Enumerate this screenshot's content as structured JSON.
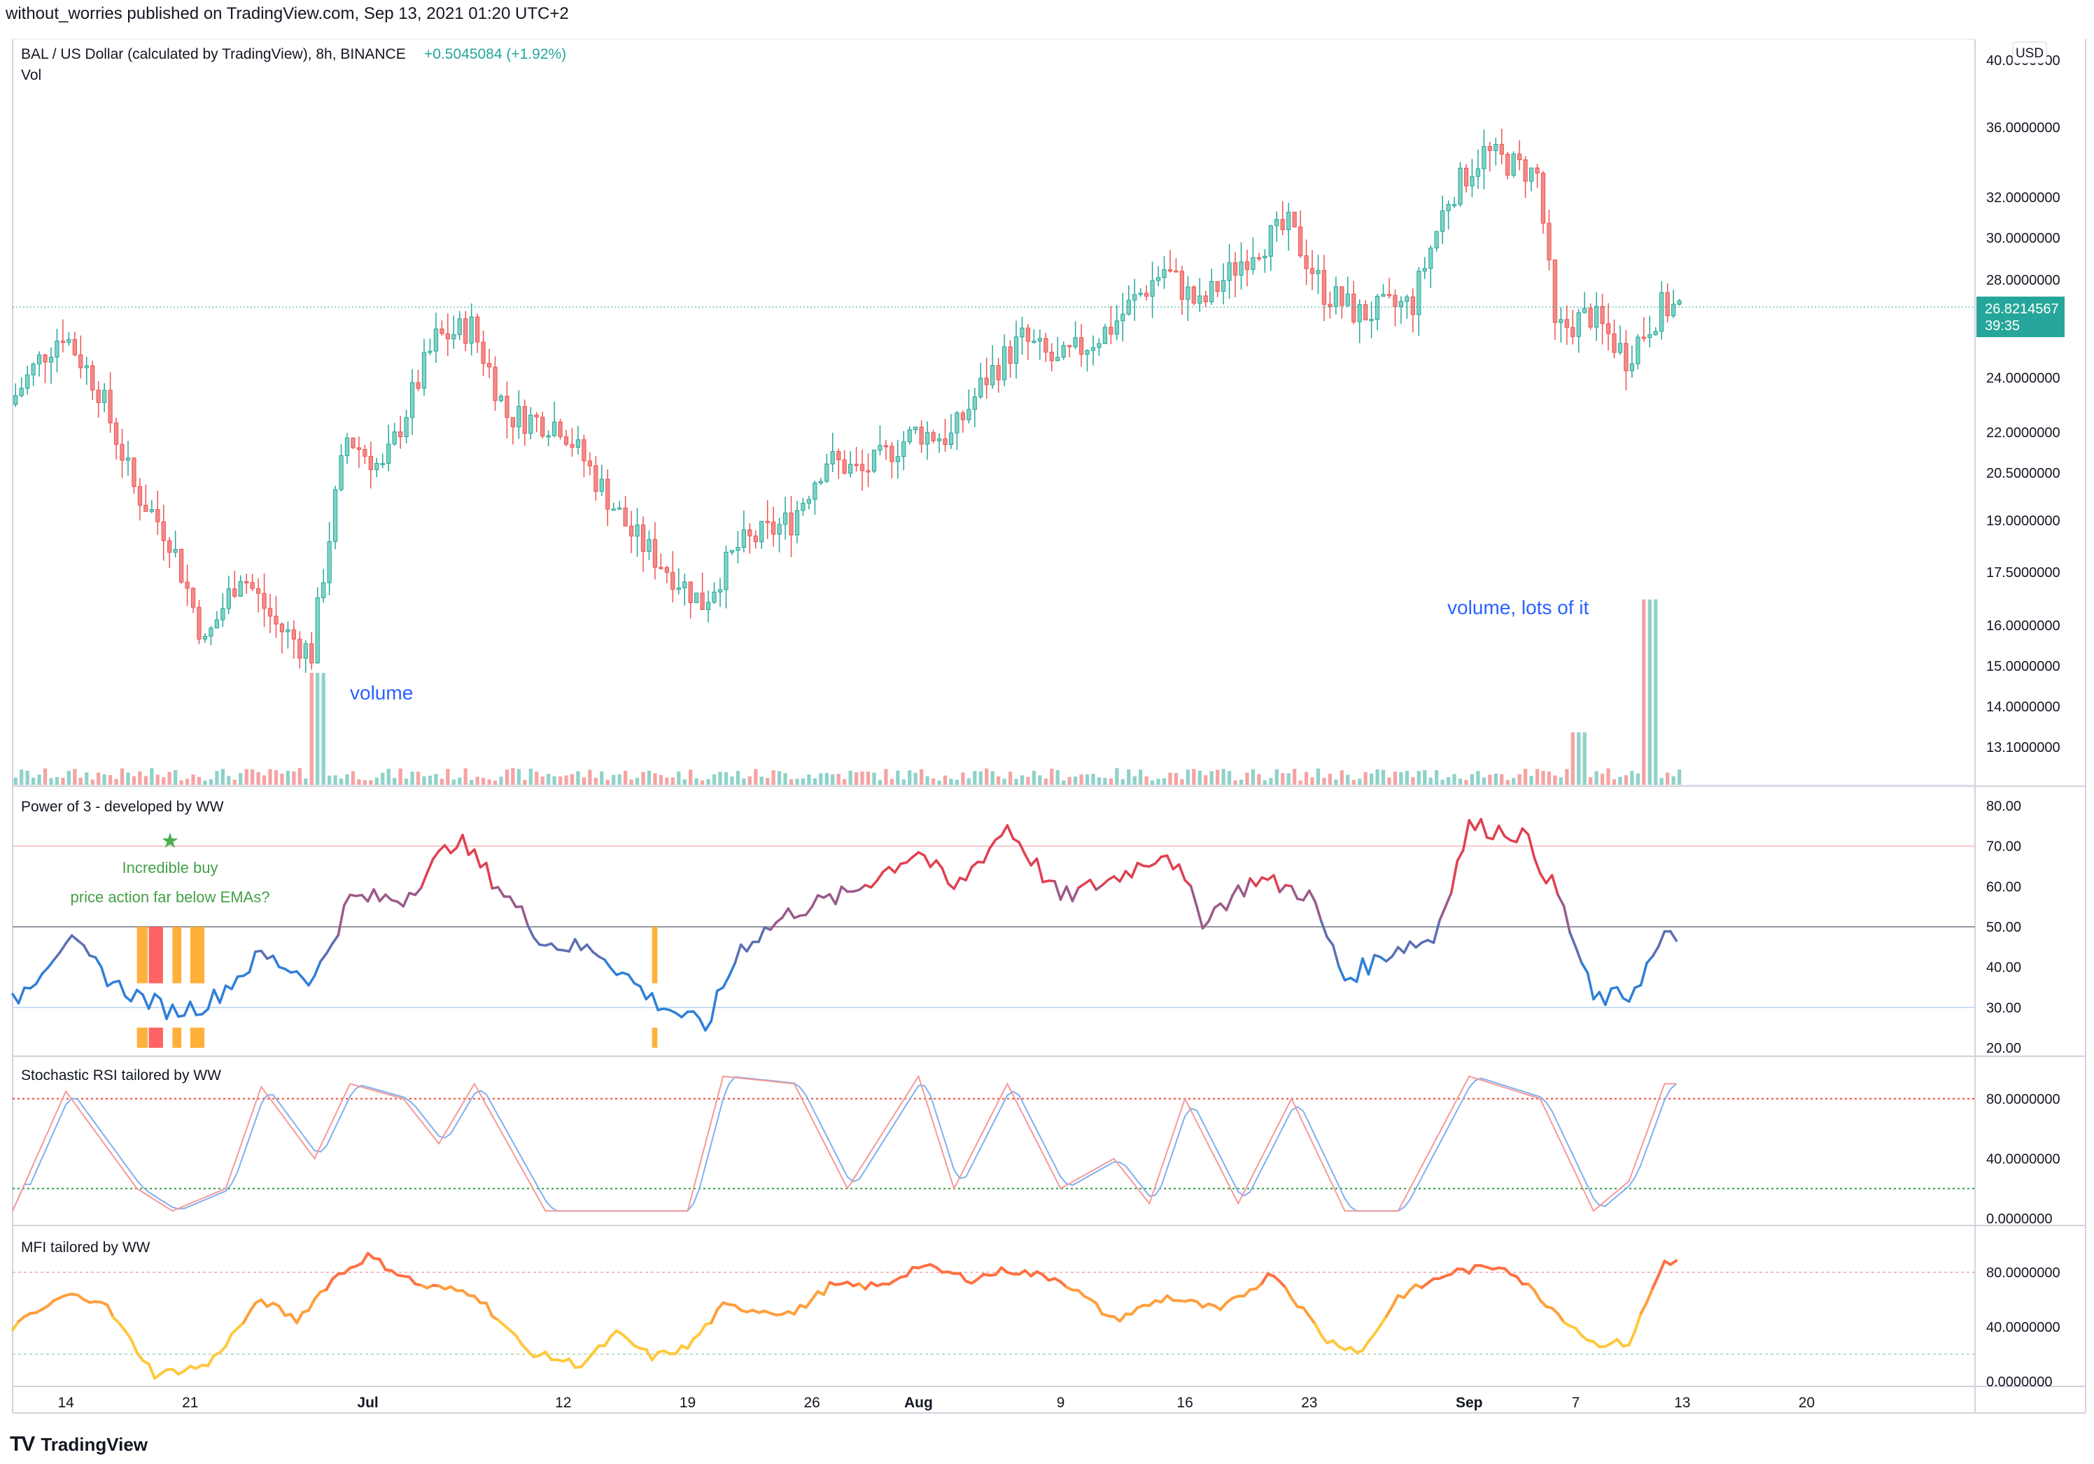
{
  "header": {
    "published": "without_worries published on TradingView.com, Sep 13, 2021 01:20 UTC+2"
  },
  "footer": {
    "brand": "TradingView",
    "logo": "tradingview-logo"
  },
  "colors": {
    "up": "#26a69a",
    "down": "#ef5350",
    "upBody": "#7fd3c4",
    "downBody": "#f28b8b",
    "volUp": "#8ed2c8",
    "volDown": "#f5a3a3",
    "blue": "#2962ff",
    "grid": "#e0e3eb",
    "text": "#131722",
    "axisText": "#131722",
    "powerHi": "#e04050",
    "powerLo": "#2f7fd8",
    "orange": "#ffa726",
    "red": "#ff5252",
    "green": "#00c853",
    "mfiOrange": "#ff7043",
    "mfiYellow": "#ffc83d"
  },
  "price_panel": {
    "symbol": "BAL / US Dollar (calculated by TradingView), 8h, BINANCE",
    "change": "+0.5045084 (+1.92%)",
    "vol_label": "Vol",
    "currency": "USD",
    "last_price": "26.8214567",
    "countdown": "39:35",
    "annotation_volume": "volume",
    "annotation_volume_lots": "volume, lots of it",
    "axis_labels": [
      "40.0000000",
      "36.0000000",
      "32.0000000",
      "30.0000000",
      "28.0000000",
      "24.0000000",
      "22.0000000",
      "20.5000000",
      "19.0000000",
      "17.5000000",
      "16.0000000",
      "15.0000000",
      "14.0000000",
      "13.1000000"
    ]
  },
  "power_panel": {
    "title": "Power of 3 - developed by WW",
    "note_line1": "Incredible buy",
    "note_line2": "price action far below EMAs?",
    "axis_labels": [
      "80.00",
      "70.00",
      "60.00",
      "50.00",
      "40.00",
      "30.00",
      "20.00"
    ]
  },
  "stoch_panel": {
    "title": "Stochastic RSI tailored by WW",
    "axis_labels": [
      "80.0000000",
      "40.0000000",
      "0.0000000"
    ]
  },
  "mfi_panel": {
    "title": "MFI tailored by WW",
    "axis_labels": [
      "80.0000000",
      "40.0000000",
      "0.0000000"
    ]
  },
  "time_axis": [
    "14",
    "21",
    "Jul",
    "12",
    "19",
    "26",
    "Aug",
    "9",
    "16",
    "23",
    "Sep",
    "7",
    "13",
    "20"
  ],
  "chart_data": {
    "type": "candlestick",
    "timeframe": "8h",
    "xlim": [
      "2021-06-11",
      "2021-09-13"
    ],
    "price_ylim": [
      12.5,
      40.5
    ],
    "price_scale": "log",
    "close_path": [
      {
        "date": "2021-06-11",
        "close": 23.0
      },
      {
        "date": "2021-06-13",
        "close": 25.0
      },
      {
        "date": "2021-06-14",
        "close": 25.8
      },
      {
        "date": "2021-06-16",
        "close": 23.6
      },
      {
        "date": "2021-06-18",
        "close": 20.0
      },
      {
        "date": "2021-06-20",
        "close": 18.5
      },
      {
        "date": "2021-06-22",
        "close": 15.5
      },
      {
        "date": "2021-06-24",
        "close": 17.5
      },
      {
        "date": "2021-06-26",
        "close": 16.0
      },
      {
        "date": "2021-06-28",
        "close": 15.3
      },
      {
        "date": "2021-06-30",
        "close": 21.8
      },
      {
        "date": "2021-07-02",
        "close": 20.6
      },
      {
        "date": "2021-07-05",
        "close": 25.5
      },
      {
        "date": "2021-07-07",
        "close": 26.0
      },
      {
        "date": "2021-07-09",
        "close": 22.6
      },
      {
        "date": "2021-07-12",
        "close": 22.3
      },
      {
        "date": "2021-07-14",
        "close": 20.3
      },
      {
        "date": "2021-07-16",
        "close": 18.6
      },
      {
        "date": "2021-07-18",
        "close": 17.6
      },
      {
        "date": "2021-07-20",
        "close": 16.6
      },
      {
        "date": "2021-07-22",
        "close": 18.2
      },
      {
        "date": "2021-07-25",
        "close": 19.0
      },
      {
        "date": "2021-07-27",
        "close": 21.0
      },
      {
        "date": "2021-07-29",
        "close": 20.5
      },
      {
        "date": "2021-08-01",
        "close": 22.0
      },
      {
        "date": "2021-08-03",
        "close": 21.8
      },
      {
        "date": "2021-08-05",
        "close": 24.0
      },
      {
        "date": "2021-08-07",
        "close": 25.5
      },
      {
        "date": "2021-08-09",
        "close": 24.5
      },
      {
        "date": "2021-08-12",
        "close": 26.0
      },
      {
        "date": "2021-08-15",
        "close": 28.5
      },
      {
        "date": "2021-08-17",
        "close": 26.8
      },
      {
        "date": "2021-08-20",
        "close": 29.5
      },
      {
        "date": "2021-08-22",
        "close": 30.5
      },
      {
        "date": "2021-08-24",
        "close": 27.5
      },
      {
        "date": "2021-08-26",
        "close": 26.5
      },
      {
        "date": "2021-08-29",
        "close": 27.0
      },
      {
        "date": "2021-08-31",
        "close": 32.0
      },
      {
        "date": "2021-09-02",
        "close": 34.5
      },
      {
        "date": "2021-09-05",
        "close": 33.2
      },
      {
        "date": "2021-09-06",
        "close": 25.8
      },
      {
        "date": "2021-09-08",
        "close": 26.5
      },
      {
        "date": "2021-09-10",
        "close": 24.8
      },
      {
        "date": "2021-09-12",
        "close": 26.8
      }
    ],
    "volume_spikes": [
      {
        "date": "2021-06-28",
        "relative": "large"
      },
      {
        "date": "2021-09-07",
        "relative": "medium"
      },
      {
        "date": "2021-09-11",
        "relative": "very large"
      }
    ],
    "power_of_3": {
      "ylim": [
        20,
        80
      ],
      "reference_lines": [
        70,
        50,
        30
      ],
      "path": [
        {
          "date": "2021-06-11",
          "value": 31
        },
        {
          "date": "2021-06-14",
          "value": 47
        },
        {
          "date": "2021-06-17",
          "value": 35
        },
        {
          "date": "2021-06-20",
          "value": 29
        },
        {
          "date": "2021-06-22",
          "value": 31
        },
        {
          "date": "2021-06-25",
          "value": 43
        },
        {
          "date": "2021-06-28",
          "value": 37
        },
        {
          "date": "2021-06-30",
          "value": 57
        },
        {
          "date": "2021-07-03",
          "value": 57
        },
        {
          "date": "2021-07-06",
          "value": 72
        },
        {
          "date": "2021-07-08",
          "value": 62
        },
        {
          "date": "2021-07-11",
          "value": 46
        },
        {
          "date": "2021-07-14",
          "value": 44
        },
        {
          "date": "2021-07-17",
          "value": 32
        },
        {
          "date": "2021-07-20",
          "value": 25
        },
        {
          "date": "2021-07-22",
          "value": 45
        },
        {
          "date": "2021-07-25",
          "value": 54
        },
        {
          "date": "2021-07-28",
          "value": 58
        },
        {
          "date": "2021-08-01",
          "value": 69
        },
        {
          "date": "2021-08-03",
          "value": 59
        },
        {
          "date": "2021-08-06",
          "value": 75
        },
        {
          "date": "2021-08-09",
          "value": 57
        },
        {
          "date": "2021-08-12",
          "value": 62
        },
        {
          "date": "2021-08-15",
          "value": 69
        },
        {
          "date": "2021-08-17",
          "value": 52
        },
        {
          "date": "2021-08-20",
          "value": 62
        },
        {
          "date": "2021-08-23",
          "value": 58
        },
        {
          "date": "2021-08-25",
          "value": 37
        },
        {
          "date": "2021-08-28",
          "value": 45
        },
        {
          "date": "2021-08-30",
          "value": 47
        },
        {
          "date": "2021-09-01",
          "value": 75
        },
        {
          "date": "2021-09-04",
          "value": 73
        },
        {
          "date": "2021-09-06",
          "value": 58
        },
        {
          "date": "2021-09-08",
          "value": 32
        },
        {
          "date": "2021-09-10",
          "value": 33
        },
        {
          "date": "2021-09-12",
          "value": 47
        }
      ]
    },
    "stoch_rsi": {
      "ylim": [
        0,
        100
      ],
      "reference_lines": [
        80,
        20
      ],
      "k_path": [
        {
          "date": "2021-06-11",
          "value": 5
        },
        {
          "date": "2021-06-14",
          "value": 85
        },
        {
          "date": "2021-06-18",
          "value": 20
        },
        {
          "date": "2021-06-20",
          "value": 5
        },
        {
          "date": "2021-06-23",
          "value": 20
        },
        {
          "date": "2021-06-25",
          "value": 88
        },
        {
          "date": "2021-06-28",
          "value": 40
        },
        {
          "date": "2021-06-30",
          "value": 90
        },
        {
          "date": "2021-07-03",
          "value": 80
        },
        {
          "date": "2021-07-05",
          "value": 50
        },
        {
          "date": "2021-07-07",
          "value": 90
        },
        {
          "date": "2021-07-11",
          "value": 5
        },
        {
          "date": "2021-07-15",
          "value": 5
        },
        {
          "date": "2021-07-17",
          "value": 5
        },
        {
          "date": "2021-07-19",
          "value": 5
        },
        {
          "date": "2021-07-21",
          "value": 95
        },
        {
          "date": "2021-07-25",
          "value": 90
        },
        {
          "date": "2021-07-28",
          "value": 20
        },
        {
          "date": "2021-08-01",
          "value": 95
        },
        {
          "date": "2021-08-03",
          "value": 20
        },
        {
          "date": "2021-08-06",
          "value": 90
        },
        {
          "date": "2021-08-09",
          "value": 20
        },
        {
          "date": "2021-08-12",
          "value": 40
        },
        {
          "date": "2021-08-14",
          "value": 10
        },
        {
          "date": "2021-08-16",
          "value": 80
        },
        {
          "date": "2021-08-19",
          "value": 10
        },
        {
          "date": "2021-08-22",
          "value": 80
        },
        {
          "date": "2021-08-25",
          "value": 5
        },
        {
          "date": "2021-08-28",
          "value": 5
        },
        {
          "date": "2021-09-01",
          "value": 95
        },
        {
          "date": "2021-09-05",
          "value": 80
        },
        {
          "date": "2021-09-08",
          "value": 5
        },
        {
          "date": "2021-09-10",
          "value": 25
        },
        {
          "date": "2021-09-12",
          "value": 90
        }
      ]
    },
    "mfi": {
      "ylim": [
        0,
        100
      ],
      "reference_lines": [
        80,
        20
      ],
      "path": [
        {
          "date": "2021-06-11",
          "value": 40
        },
        {
          "date": "2021-06-14",
          "value": 63
        },
        {
          "date": "2021-06-16",
          "value": 60
        },
        {
          "date": "2021-06-19",
          "value": 5
        },
        {
          "date": "2021-06-22",
          "value": 12
        },
        {
          "date": "2021-06-25",
          "value": 60
        },
        {
          "date": "2021-06-27",
          "value": 45
        },
        {
          "date": "2021-06-29",
          "value": 75
        },
        {
          "date": "2021-07-01",
          "value": 92
        },
        {
          "date": "2021-07-04",
          "value": 70
        },
        {
          "date": "2021-07-07",
          "value": 65
        },
        {
          "date": "2021-07-10",
          "value": 22
        },
        {
          "date": "2021-07-13",
          "value": 12
        },
        {
          "date": "2021-07-15",
          "value": 35
        },
        {
          "date": "2021-07-17",
          "value": 18
        },
        {
          "date": "2021-07-19",
          "value": 25
        },
        {
          "date": "2021-07-21",
          "value": 55
        },
        {
          "date": "2021-07-25",
          "value": 50
        },
        {
          "date": "2021-07-27",
          "value": 70
        },
        {
          "date": "2021-07-30",
          "value": 70
        },
        {
          "date": "2021-08-01",
          "value": 85
        },
        {
          "date": "2021-08-04",
          "value": 75
        },
        {
          "date": "2021-08-06",
          "value": 82
        },
        {
          "date": "2021-08-09",
          "value": 75
        },
        {
          "date": "2021-08-12",
          "value": 45
        },
        {
          "date": "2021-08-15",
          "value": 62
        },
        {
          "date": "2021-08-18",
          "value": 52
        },
        {
          "date": "2021-08-21",
          "value": 80
        },
        {
          "date": "2021-08-24",
          "value": 30
        },
        {
          "date": "2021-08-26",
          "value": 22
        },
        {
          "date": "2021-08-28",
          "value": 62
        },
        {
          "date": "2021-08-31",
          "value": 80
        },
        {
          "date": "2021-09-03",
          "value": 85
        },
        {
          "date": "2021-09-06",
          "value": 50
        },
        {
          "date": "2021-09-08",
          "value": 28
        },
        {
          "date": "2021-09-10",
          "value": 28
        },
        {
          "date": "2021-09-12",
          "value": 88
        }
      ]
    }
  }
}
